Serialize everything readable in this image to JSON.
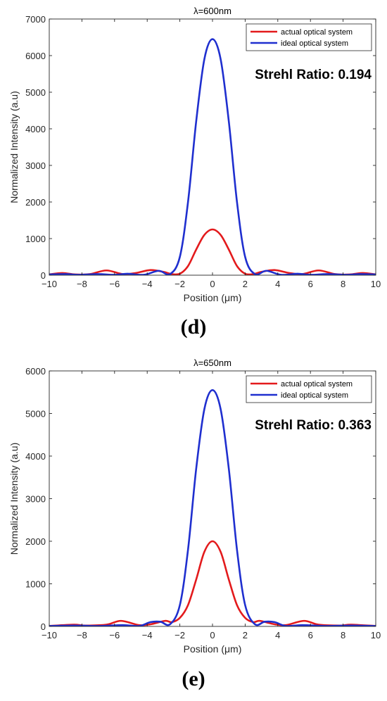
{
  "panel_labels": [
    "(d)",
    "(e)"
  ],
  "chart_data": [
    {
      "type": "line",
      "title": "λ=600nm",
      "xlabel": "Position (μm)",
      "ylabel": "Normalized Intensity (a.u)",
      "xlim": [
        -10,
        10
      ],
      "ylim": [
        0,
        7000
      ],
      "xticks": [
        -10,
        -8,
        -6,
        -4,
        -2,
        0,
        2,
        4,
        6,
        8,
        10
      ],
      "yticks": [
        0,
        1000,
        2000,
        3000,
        4000,
        5000,
        6000,
        7000
      ],
      "grid": false,
      "legend_position": "top-right",
      "annotation": "Strehl Ratio: 0.194",
      "series": [
        {
          "name": "actual optical system",
          "color": "#e31a1c",
          "x": [
            -10,
            -9.2,
            -8.4,
            -7.5,
            -6.5,
            -5.5,
            -4.7,
            -3.8,
            -3.0,
            -2.5,
            -2.0,
            -1.5,
            -1.0,
            -0.5,
            0,
            0.5,
            1.0,
            1.5,
            2.0,
            2.5,
            3.0,
            3.8,
            4.7,
            5.5,
            6.5,
            7.5,
            8.4,
            9.2,
            10
          ],
          "y": [
            20,
            60,
            20,
            30,
            130,
            30,
            60,
            140,
            90,
            30,
            40,
            250,
            700,
            1100,
            1250,
            1100,
            700,
            250,
            40,
            30,
            90,
            140,
            60,
            30,
            130,
            30,
            20,
            60,
            20
          ]
        },
        {
          "name": "ideal optical system",
          "color": "#1f2fcf",
          "x": [
            -10,
            -9.0,
            -8.2,
            -7.0,
            -6.0,
            -5.2,
            -4.2,
            -3.3,
            -2.6,
            -2.0,
            -1.5,
            -1.0,
            -0.5,
            0,
            0.5,
            1.0,
            1.5,
            2.0,
            2.6,
            3.3,
            4.2,
            5.2,
            6.0,
            7.0,
            8.2,
            9.0,
            10
          ],
          "y": [
            20,
            30,
            10,
            30,
            10,
            40,
            10,
            120,
            30,
            500,
            2000,
            4200,
            5900,
            6450,
            5900,
            4200,
            2000,
            500,
            30,
            120,
            10,
            40,
            10,
            30,
            10,
            30,
            20
          ]
        }
      ]
    },
    {
      "type": "line",
      "title": "λ=650nm",
      "xlabel": "Position (μm)",
      "ylabel": "Normalized Intensity (a.u)",
      "xlim": [
        -10,
        10
      ],
      "ylim": [
        0,
        6000
      ],
      "xticks": [
        -10,
        -8,
        -6,
        -4,
        -2,
        0,
        2,
        4,
        6,
        8,
        10
      ],
      "yticks": [
        0,
        1000,
        2000,
        3000,
        4000,
        5000,
        6000
      ],
      "grid": false,
      "legend_position": "top-right",
      "annotation": "Strehl Ratio: 0.363",
      "series": [
        {
          "name": "actual optical system",
          "color": "#e31a1c",
          "x": [
            -10,
            -8.5,
            -7.8,
            -6.5,
            -5.6,
            -4.5,
            -3.8,
            -2.9,
            -2.5,
            -2.0,
            -1.5,
            -1.0,
            -0.5,
            0,
            0.5,
            1.0,
            1.5,
            2.0,
            2.5,
            2.9,
            3.8,
            4.5,
            5.6,
            6.5,
            7.8,
            8.5,
            10
          ],
          "y": [
            10,
            40,
            20,
            40,
            130,
            30,
            50,
            130,
            100,
            200,
            500,
            1100,
            1750,
            2000,
            1750,
            1100,
            500,
            200,
            100,
            130,
            50,
            30,
            130,
            40,
            20,
            40,
            10
          ]
        },
        {
          "name": "ideal optical system",
          "color": "#1f2fcf",
          "x": [
            -10,
            -8.5,
            -7.0,
            -5.5,
            -4.5,
            -3.8,
            -3.2,
            -2.6,
            -2.0,
            -1.5,
            -1.0,
            -0.5,
            0,
            0.5,
            1.0,
            1.5,
            2.0,
            2.6,
            3.2,
            3.8,
            4.5,
            5.5,
            7.0,
            8.5,
            10
          ],
          "y": [
            10,
            20,
            10,
            30,
            10,
            100,
            110,
            50,
            500,
            1800,
            3700,
            5100,
            5550,
            5100,
            3700,
            1800,
            500,
            50,
            110,
            100,
            10,
            30,
            10,
            20,
            10
          ]
        }
      ]
    }
  ]
}
